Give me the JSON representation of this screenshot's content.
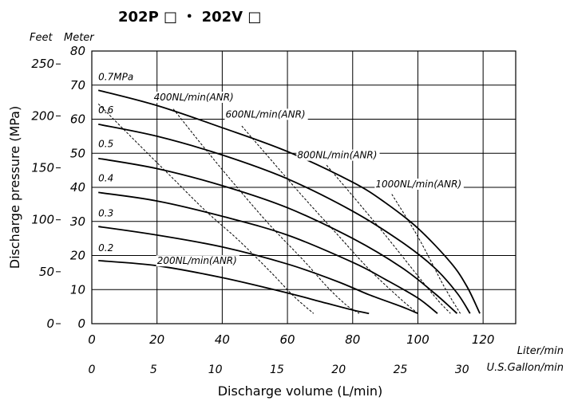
{
  "title": "202P □ ・ 202V □",
  "chart_data": {
    "type": "line",
    "title": "202P □ ・ 202V □",
    "xlabel": "Discharge volume (L/min)",
    "ylabel": "Discharge pressure (MPa)",
    "xlim": [
      0,
      130
    ],
    "ylim": [
      0,
      80
    ],
    "grid": true,
    "x_unit_primary": "Liter/min",
    "x_unit_secondary": "U.S.Gallon/min",
    "y_unit_feet": "Feet",
    "y_unit_meter": "Meter",
    "x_ticks": [
      0,
      20,
      40,
      60,
      80,
      100,
      120
    ],
    "x_ticks_gallon": [
      0,
      5,
      10,
      15,
      20,
      25,
      30
    ],
    "y_ticks_meter": [
      0,
      10,
      20,
      30,
      40,
      50,
      60,
      70,
      80
    ],
    "y_ticks_feet": [
      0,
      50,
      100,
      150,
      200,
      250
    ],
    "series": [
      {
        "name": "0.7MPa",
        "line": "solid",
        "label": {
          "text": "0.7MPa",
          "x": 2,
          "y": 71.5
        },
        "x": [
          2,
          20,
          40,
          60,
          80,
          90,
          100,
          110,
          115,
          119
        ],
        "y": [
          68.5,
          64.0,
          57.5,
          50.5,
          41.5,
          35.5,
          28.0,
          18.0,
          11.0,
          3.0
        ]
      },
      {
        "name": "0.6",
        "line": "solid",
        "label": {
          "text": "0.6",
          "x": 2,
          "y": 61.8
        },
        "x": [
          2,
          20,
          40,
          60,
          80,
          95,
          105,
          112,
          116
        ],
        "y": [
          58.5,
          55.0,
          49.5,
          42.5,
          33.0,
          24.0,
          16.5,
          9.0,
          3.0
        ]
      },
      {
        "name": "0.5",
        "line": "solid",
        "label": {
          "text": "0.5",
          "x": 2,
          "y": 51.8
        },
        "x": [
          2,
          20,
          40,
          60,
          80,
          95,
          105,
          112
        ],
        "y": [
          48.5,
          45.5,
          40.5,
          34.0,
          25.0,
          16.5,
          9.0,
          3.0
        ]
      },
      {
        "name": "0.4",
        "line": "solid",
        "label": {
          "text": "0.4",
          "x": 2,
          "y": 41.8
        },
        "x": [
          2,
          20,
          40,
          60,
          80,
          90,
          100,
          106
        ],
        "y": [
          38.5,
          36.0,
          31.5,
          26.0,
          18.0,
          13.0,
          7.5,
          3.0
        ]
      },
      {
        "name": "0.3",
        "line": "solid",
        "label": {
          "text": "0.3",
          "x": 2,
          "y": 31.5
        },
        "x": [
          2,
          20,
          40,
          60,
          75,
          85,
          95,
          100
        ],
        "y": [
          28.5,
          26.0,
          22.5,
          17.5,
          12.5,
          8.5,
          5.0,
          3.0
        ]
      },
      {
        "name": "0.2",
        "line": "solid",
        "label": {
          "text": "0.2",
          "x": 2,
          "y": 21.3
        },
        "x": [
          2,
          20,
          40,
          60,
          70,
          80,
          85
        ],
        "y": [
          18.5,
          17.0,
          13.5,
          9.0,
          6.5,
          4.0,
          3.0
        ]
      },
      {
        "name": "200NL/min(ANR)",
        "line": "dashed",
        "label": {
          "text": "200NL/min(ANR)",
          "x": 20,
          "y": 17.5
        },
        "x": [
          2,
          15,
          25,
          35,
          45,
          55,
          62,
          68
        ],
        "y": [
          64.5,
          52.0,
          42.5,
          33.0,
          24.5,
          15.0,
          8.0,
          3.0
        ]
      },
      {
        "name": "400NL/min(ANR)",
        "line": "dashed",
        "label": {
          "text": "400NL/min(ANR)",
          "x": 19,
          "y": 65.5
        },
        "x": [
          25,
          35,
          45,
          55,
          65,
          72,
          78,
          82
        ],
        "y": [
          63.0,
          51.0,
          39.5,
          28.5,
          18.5,
          11.0,
          5.5,
          3.0
        ]
      },
      {
        "name": "600NL/min(ANR)",
        "line": "dashed",
        "label": {
          "text": "600NL/min(ANR)",
          "x": 41,
          "y": 60.5
        },
        "x": [
          46,
          55,
          65,
          75,
          85,
          95,
          100
        ],
        "y": [
          58.0,
          48.0,
          37.0,
          26.5,
          16.0,
          7.0,
          3.0
        ]
      },
      {
        "name": "800NL/min(ANR)",
        "line": "dashed",
        "label": {
          "text": "800NL/min(ANR)",
          "x": 63,
          "y": 48.5
        },
        "x": [
          72,
          80,
          90,
          100,
          106,
          110
        ],
        "y": [
          46.5,
          37.5,
          26.0,
          14.0,
          7.0,
          3.0
        ]
      },
      {
        "name": "1000NL/min(ANR)",
        "line": "dashed",
        "label": {
          "text": "1000NL/min(ANR)",
          "x": 87,
          "y": 40.0
        },
        "x": [
          92,
          100,
          108,
          113
        ],
        "y": [
          38.0,
          25.5,
          11.0,
          3.0
        ]
      }
    ]
  }
}
